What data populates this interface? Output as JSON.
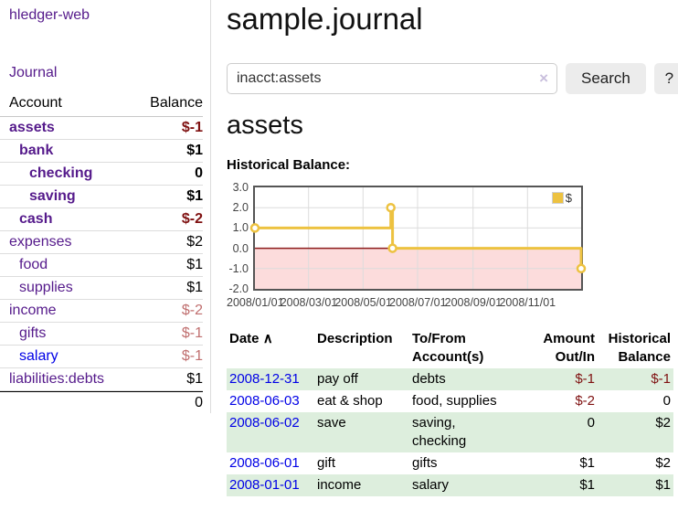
{
  "app": {
    "brand": "hledger-web",
    "nav_journal": "Journal"
  },
  "sidebar": {
    "header": {
      "account": "Account",
      "balance": "Balance"
    },
    "accounts": [
      {
        "name": "assets",
        "indent": 0,
        "bold": true,
        "balance": "$-1",
        "neg": "strong"
      },
      {
        "name": "bank",
        "indent": 1,
        "bold": true,
        "balance": "$1",
        "neg": "none"
      },
      {
        "name": "checking",
        "indent": 2,
        "bold": true,
        "balance": "0",
        "neg": "none"
      },
      {
        "name": "saving",
        "indent": 2,
        "bold": true,
        "balance": "$1",
        "neg": "none"
      },
      {
        "name": "cash",
        "indent": 1,
        "bold": true,
        "balance": "$-2",
        "neg": "strong"
      },
      {
        "name": "expenses",
        "indent": 0,
        "bold": false,
        "balance": "$2",
        "neg": "none"
      },
      {
        "name": "food",
        "indent": 1,
        "bold": false,
        "balance": "$1",
        "neg": "none"
      },
      {
        "name": "supplies",
        "indent": 1,
        "bold": false,
        "balance": "$1",
        "neg": "none"
      },
      {
        "name": "income",
        "indent": 0,
        "bold": false,
        "balance": "$-2",
        "neg": "soft"
      },
      {
        "name": "gifts",
        "indent": 1,
        "bold": false,
        "balance": "$-1",
        "neg": "soft"
      },
      {
        "name": "salary",
        "indent": 1,
        "bold": false,
        "balance": "$-1",
        "neg": "soft",
        "link": "blue"
      },
      {
        "name": "liabilities:debts",
        "indent": 0,
        "bold": false,
        "balance": "$1",
        "neg": "none"
      }
    ],
    "total": "0"
  },
  "main": {
    "title": "sample.journal",
    "search": {
      "value": "inacct:assets",
      "clear": "×",
      "button": "Search",
      "help": "?"
    },
    "account_heading": "assets",
    "chart_label": "Historical Balance:"
  },
  "chart_data": {
    "type": "line",
    "title": "Historical Balance of assets",
    "legend": [
      {
        "label": "$",
        "color": "#EDC240"
      }
    ],
    "ylim": [
      -2,
      3
    ],
    "yticks": [
      {
        "v": 3,
        "label": "3.0"
      },
      {
        "v": 2,
        "label": "2.0"
      },
      {
        "v": 1,
        "label": "1.0"
      },
      {
        "v": 0,
        "label": "0.0"
      },
      {
        "v": -1,
        "label": "-1.0"
      },
      {
        "v": -2,
        "label": "-2.0"
      }
    ],
    "xticks": [
      {
        "pos": 0.0,
        "label": "2008/01/01"
      },
      {
        "pos": 0.1644,
        "label": "2008/03/01"
      },
      {
        "pos": 0.3315,
        "label": "2008/05/01"
      },
      {
        "pos": 0.4986,
        "label": "2008/07/01"
      },
      {
        "pos": 0.6685,
        "label": "2008/09/01"
      },
      {
        "pos": 0.8356,
        "label": "2008/11/01"
      }
    ],
    "series": [
      {
        "name": "$",
        "color": "#EDC240",
        "step": true,
        "points": [
          {
            "date": "2008-01-01",
            "x": 0.0,
            "y": 1
          },
          {
            "date": "2008-06-01",
            "x": 0.4164,
            "y": 2
          },
          {
            "date": "2008-06-03",
            "x": 0.4219,
            "y": 0
          },
          {
            "date": "2008-12-31",
            "x": 1.0,
            "y": -1
          }
        ]
      }
    ],
    "grid": true,
    "legend_position": "top-right",
    "negative_fill": "#fcdcdc",
    "zero_line_color": "#8b1a1a"
  },
  "table": {
    "sort_icon": "∧",
    "headers": {
      "date": "Date",
      "description": "Description",
      "accounts": "To/From Account(s)",
      "amount": "Amount Out/In",
      "balance": "Historical Balance"
    },
    "rows": [
      {
        "date": "2008-12-31",
        "description": "pay off",
        "accounts": "debts",
        "amount": "$-1",
        "amount_neg": true,
        "balance": "$-1",
        "balance_neg": true,
        "shaded": true
      },
      {
        "date": "2008-06-03",
        "description": "eat & shop",
        "accounts": "food, supplies",
        "amount": "$-2",
        "amount_neg": true,
        "balance": "0",
        "balance_neg": false,
        "shaded": false
      },
      {
        "date": "2008-06-02",
        "description": "save",
        "accounts": "saving,\nchecking",
        "amount": "0",
        "amount_neg": false,
        "balance": "$2",
        "balance_neg": false,
        "shaded": true
      },
      {
        "date": "2008-06-01",
        "description": "gift",
        "accounts": "gifts",
        "amount": "$1",
        "amount_neg": false,
        "balance": "$2",
        "balance_neg": false,
        "shaded": false
      },
      {
        "date": "2008-01-01",
        "description": "income",
        "accounts": "salary",
        "amount": "$1",
        "amount_neg": false,
        "balance": "$1",
        "balance_neg": false,
        "shaded": true
      }
    ]
  }
}
